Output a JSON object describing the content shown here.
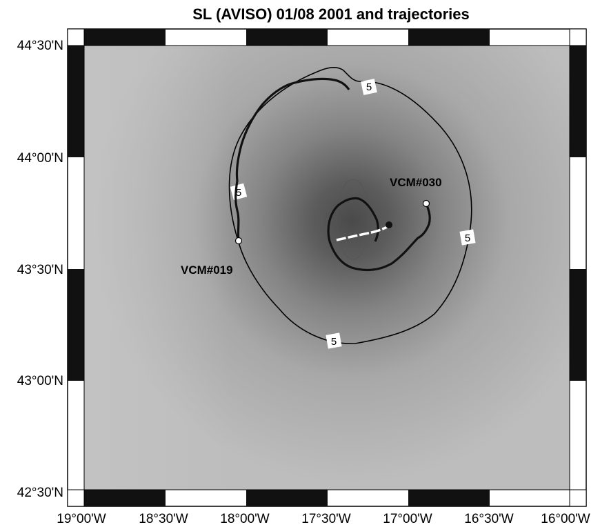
{
  "title": "SL (AVISO) 01/08 2001 and trajectories",
  "x_ticks": [
    "19°00'W",
    "18°30'W",
    "18°00'W",
    "17°30'W",
    "17°00'W",
    "16°30'W",
    "16°00'W"
  ],
  "y_ticks": [
    "44°30'N",
    "44°00'N",
    "43°30'N",
    "43°00'N",
    "42°30'N"
  ],
  "contour_labels": [
    "5",
    "5",
    "5",
    "5"
  ],
  "floats": [
    {
      "name": "VCM#019"
    },
    {
      "name": "VCM#030"
    }
  ]
}
